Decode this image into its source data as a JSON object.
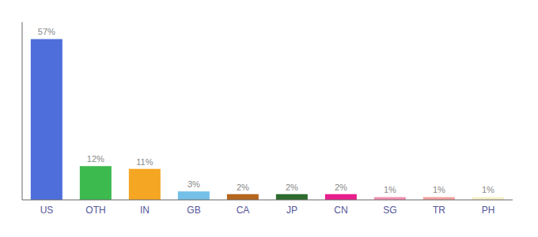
{
  "chart_data": {
    "type": "bar",
    "categories": [
      "US",
      "OTH",
      "IN",
      "GB",
      "CA",
      "JP",
      "CN",
      "SG",
      "TR",
      "PH"
    ],
    "values": [
      57,
      12,
      11,
      3,
      2,
      2,
      2,
      1,
      1,
      1
    ],
    "value_labels": [
      "57%",
      "12%",
      "11%",
      "3%",
      "2%",
      "2%",
      "2%",
      "1%",
      "1%",
      "1%"
    ],
    "colors": [
      "#4d6edb",
      "#3dba4e",
      "#f5a623",
      "#74c0e8",
      "#b5651d",
      "#2e6b2e",
      "#e91e8c",
      "#f48fb1",
      "#f4a0a0",
      "#f5f0c8"
    ],
    "ylim": [
      0,
      63
    ],
    "yticks": [],
    "tick_labels": "x",
    "data_labels": true,
    "grid": false
  }
}
